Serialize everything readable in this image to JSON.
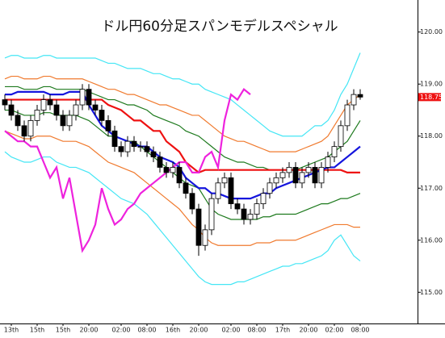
{
  "chart_data": {
    "type": "candlestick",
    "title": "ドル円60分足スパンモデルスペシャル",
    "categories": [
      null,
      "13th",
      null,
      null,
      null,
      "15th",
      null,
      null,
      null,
      "15th",
      null,
      null,
      null,
      "20:00",
      null,
      null,
      null,
      null,
      "02:00",
      null,
      null,
      null,
      "08:00",
      null,
      null,
      null,
      "16th",
      null,
      null,
      null,
      "20:00",
      null,
      null,
      null,
      null,
      "02:00",
      null,
      null,
      null,
      "08:00",
      null,
      null,
      null,
      "17th",
      null,
      null,
      null,
      "20:00",
      null,
      null,
      null,
      "02:00",
      null,
      null,
      null,
      "08:00"
    ],
    "candles": {
      "open": [
        118.7,
        118.6,
        118.4,
        118.2,
        118.0,
        118.3,
        118.5,
        118.7,
        118.6,
        118.4,
        118.2,
        118.4,
        118.6,
        118.9,
        118.6,
        118.5,
        118.3,
        118.1,
        117.8,
        117.7,
        117.9,
        117.8,
        117.8,
        117.7,
        117.6,
        117.4,
        117.3,
        117.4,
        117.1,
        116.9,
        116.6,
        115.9,
        116.2,
        116.8,
        117.1,
        117.2,
        116.7,
        116.6,
        116.4,
        116.5,
        116.7,
        116.9,
        117.1,
        117.2,
        117.3,
        117.4,
        117.1,
        117.3,
        117.4,
        117.1,
        117.4,
        117.6,
        117.8,
        118.2,
        118.6,
        118.8
      ],
      "high": [
        118.8,
        118.7,
        118.5,
        118.3,
        118.4,
        118.6,
        118.8,
        118.8,
        118.7,
        118.5,
        118.5,
        118.7,
        119.0,
        119.0,
        118.7,
        118.6,
        118.4,
        118.2,
        117.9,
        118.0,
        118.0,
        117.9,
        117.9,
        117.8,
        117.7,
        117.5,
        117.5,
        117.5,
        117.2,
        117.0,
        116.7,
        116.3,
        116.9,
        117.2,
        117.3,
        117.3,
        116.8,
        116.7,
        116.6,
        116.8,
        117.0,
        117.2,
        117.3,
        117.4,
        117.5,
        117.5,
        117.4,
        117.5,
        117.5,
        117.5,
        117.7,
        117.9,
        118.3,
        118.7,
        118.9,
        118.9
      ],
      "low": [
        118.5,
        118.3,
        118.1,
        117.9,
        117.9,
        118.2,
        118.4,
        118.5,
        118.3,
        118.1,
        118.1,
        118.3,
        118.5,
        118.5,
        118.4,
        118.2,
        118.0,
        117.7,
        117.6,
        117.6,
        117.7,
        117.7,
        117.6,
        117.5,
        117.3,
        117.2,
        117.2,
        117.0,
        116.8,
        116.5,
        115.7,
        115.8,
        116.1,
        116.7,
        117.0,
        116.6,
        116.5,
        116.3,
        116.3,
        116.4,
        116.6,
        116.8,
        117.0,
        117.1,
        117.2,
        117.0,
        117.0,
        117.2,
        117.0,
        117.0,
        117.3,
        117.5,
        117.7,
        118.1,
        118.5,
        118.7
      ],
      "close": [
        118.6,
        118.4,
        118.2,
        118.0,
        118.3,
        118.5,
        118.7,
        118.6,
        118.4,
        118.2,
        118.4,
        118.6,
        118.9,
        118.6,
        118.5,
        118.3,
        118.1,
        117.8,
        117.7,
        117.9,
        117.8,
        117.8,
        117.7,
        117.6,
        117.4,
        117.3,
        117.4,
        117.1,
        116.9,
        116.6,
        115.9,
        116.2,
        116.8,
        117.1,
        117.2,
        116.7,
        116.6,
        116.4,
        116.5,
        116.7,
        116.9,
        117.1,
        117.2,
        117.3,
        117.4,
        117.1,
        117.3,
        117.4,
        117.1,
        117.4,
        117.6,
        117.8,
        118.2,
        118.6,
        118.8,
        118.75
      ],
      "up_color": "#ffffff",
      "down_color": "#000000"
    },
    "series": [
      {
        "color": "#44e6f5",
        "values": [
          119.5,
          119.55,
          119.55,
          119.5,
          119.5,
          119.5,
          119.55,
          119.55,
          119.5,
          119.5,
          119.5,
          119.5,
          119.5,
          119.5,
          119.5,
          119.45,
          119.4,
          119.4,
          119.35,
          119.3,
          119.3,
          119.3,
          119.25,
          119.2,
          119.2,
          119.15,
          119.1,
          119.1,
          119.05,
          119.0,
          119.0,
          118.9,
          118.85,
          118.8,
          118.75,
          118.7,
          118.6,
          118.5,
          118.4,
          118.3,
          118.2,
          118.1,
          118.05,
          118.0,
          118.0,
          118.0,
          118.0,
          118.1,
          118.2,
          118.2,
          118.3,
          118.5,
          118.8,
          119.0,
          119.3,
          119.6
        ]
      },
      {
        "color": "#f07a2e",
        "values": [
          119.1,
          119.15,
          119.15,
          119.1,
          119.1,
          119.1,
          119.15,
          119.15,
          119.1,
          119.1,
          119.1,
          119.1,
          119.1,
          119.05,
          119.0,
          118.95,
          118.9,
          118.9,
          118.85,
          118.8,
          118.8,
          118.75,
          118.7,
          118.65,
          118.6,
          118.6,
          118.55,
          118.5,
          118.45,
          118.4,
          118.4,
          118.3,
          118.2,
          118.1,
          118.0,
          117.95,
          117.9,
          117.9,
          117.85,
          117.8,
          117.75,
          117.7,
          117.7,
          117.7,
          117.7,
          117.7,
          117.75,
          117.8,
          117.85,
          117.9,
          118.0,
          118.2,
          118.4,
          118.6,
          118.7,
          118.8
        ]
      },
      {
        "color": "#1e7a1e",
        "values": [
          118.95,
          118.95,
          118.95,
          118.9,
          118.9,
          118.9,
          118.95,
          118.95,
          118.9,
          118.9,
          118.9,
          118.9,
          118.9,
          118.85,
          118.8,
          118.75,
          118.7,
          118.7,
          118.65,
          118.6,
          118.6,
          118.55,
          118.5,
          118.4,
          118.35,
          118.3,
          118.25,
          118.2,
          118.1,
          118.05,
          118.0,
          117.9,
          117.8,
          117.7,
          117.6,
          117.55,
          117.5,
          117.5,
          117.45,
          117.4,
          117.4,
          117.35,
          117.35,
          117.35,
          117.35,
          117.35,
          117.4,
          117.45,
          117.5,
          117.55,
          117.6,
          117.7,
          117.8,
          117.9,
          118.1,
          118.3
        ]
      },
      {
        "color": "#1e7a1e",
        "values": [
          118.5,
          118.5,
          118.45,
          118.4,
          118.4,
          118.4,
          118.45,
          118.45,
          118.4,
          118.4,
          118.4,
          118.4,
          118.35,
          118.3,
          118.2,
          118.1,
          118.0,
          118.0,
          117.95,
          117.9,
          117.9,
          117.8,
          117.7,
          117.6,
          117.5,
          117.4,
          117.3,
          117.2,
          117.1,
          117.05,
          117.0,
          116.8,
          116.6,
          116.5,
          116.45,
          116.4,
          116.4,
          116.4,
          116.4,
          116.4,
          116.45,
          116.45,
          116.5,
          116.5,
          116.5,
          116.5,
          116.55,
          116.6,
          116.65,
          116.7,
          116.7,
          116.75,
          116.8,
          116.8,
          116.85,
          116.9
        ]
      },
      {
        "color": "#f07a2e",
        "values": [
          118.1,
          118.05,
          118.0,
          117.95,
          117.95,
          118.0,
          118.0,
          118.0,
          117.95,
          117.9,
          117.9,
          117.9,
          117.85,
          117.8,
          117.7,
          117.6,
          117.5,
          117.45,
          117.4,
          117.35,
          117.3,
          117.2,
          117.1,
          117.0,
          116.9,
          116.8,
          116.7,
          116.6,
          116.45,
          116.3,
          116.2,
          116.05,
          115.95,
          115.9,
          115.9,
          115.9,
          115.9,
          115.9,
          115.9,
          115.95,
          115.95,
          115.95,
          116.0,
          116.0,
          116.0,
          116.0,
          116.05,
          116.1,
          116.15,
          116.2,
          116.25,
          116.3,
          116.3,
          116.3,
          116.25,
          116.25
        ]
      },
      {
        "color": "#44e6f5",
        "values": [
          117.7,
          117.6,
          117.55,
          117.5,
          117.5,
          117.55,
          117.6,
          117.6,
          117.5,
          117.45,
          117.4,
          117.4,
          117.35,
          117.3,
          117.2,
          117.1,
          117.0,
          116.9,
          116.8,
          116.75,
          116.7,
          116.6,
          116.5,
          116.35,
          116.2,
          116.05,
          115.9,
          115.75,
          115.6,
          115.45,
          115.3,
          115.2,
          115.15,
          115.15,
          115.15,
          115.15,
          115.2,
          115.2,
          115.25,
          115.3,
          115.35,
          115.4,
          115.45,
          115.5,
          115.5,
          115.55,
          115.55,
          115.6,
          115.65,
          115.7,
          115.8,
          116.0,
          116.1,
          115.9,
          115.7,
          115.6
        ]
      },
      {
        "color": "#ee1111",
        "values": [
          118.7,
          118.7,
          118.7,
          118.7,
          118.7,
          118.7,
          118.7,
          118.7,
          118.7,
          118.7,
          118.7,
          118.7,
          118.7,
          118.7,
          118.7,
          118.7,
          118.6,
          118.55,
          118.5,
          118.4,
          118.3,
          118.3,
          118.2,
          118.1,
          118.1,
          117.9,
          117.8,
          117.7,
          117.5,
          117.4,
          117.3,
          117.35,
          117.35,
          117.35,
          117.35,
          117.35,
          117.35,
          117.35,
          117.35,
          117.35,
          117.35,
          117.35,
          117.35,
          117.35,
          117.35,
          117.35,
          117.35,
          117.35,
          117.35,
          117.35,
          117.35,
          117.35,
          117.35,
          117.3,
          117.3,
          117.3
        ]
      },
      {
        "color": "#1515dd",
        "values": [
          118.8,
          118.8,
          118.85,
          118.85,
          118.85,
          118.85,
          118.85,
          118.8,
          118.8,
          118.8,
          118.85,
          118.85,
          118.85,
          118.6,
          118.4,
          118.2,
          118.1,
          118.0,
          117.95,
          117.9,
          117.85,
          117.8,
          117.8,
          117.7,
          117.6,
          117.55,
          117.5,
          117.4,
          117.2,
          117.1,
          117.0,
          117.0,
          116.9,
          116.9,
          116.85,
          116.8,
          116.8,
          116.8,
          116.8,
          116.85,
          116.9,
          116.9,
          117.0,
          117.05,
          117.1,
          117.15,
          117.2,
          117.25,
          117.3,
          117.35,
          117.4,
          117.4,
          117.5,
          117.6,
          117.7,
          117.8
        ]
      },
      {
        "color": "#ee22dd",
        "values": [
          118.1,
          118.0,
          117.9,
          117.9,
          117.8,
          117.8,
          117.5,
          117.2,
          117.4,
          116.8,
          117.2,
          116.5,
          115.8,
          116.0,
          116.3,
          117.0,
          116.6,
          116.3,
          116.4,
          116.6,
          116.7,
          116.9,
          117.0,
          117.1,
          117.2,
          117.3,
          117.4,
          117.5,
          117.5,
          117.3,
          117.3,
          117.6,
          117.7,
          117.4,
          118.3,
          118.8,
          118.7,
          118.9,
          118.8,
          null,
          null,
          null,
          null,
          null,
          null,
          null,
          null,
          null,
          null,
          null,
          null,
          null,
          null,
          null,
          null,
          null
        ]
      }
    ],
    "last_price": 118.75,
    "ylim": [
      114.4,
      120.6
    ],
    "yticks": [
      {
        "value": 115,
        "label": "115.00"
      },
      {
        "value": 116,
        "label": "116.00"
      },
      {
        "value": 117,
        "label": "117.00"
      },
      {
        "value": 118,
        "label": "118.00"
      },
      {
        "value": 119,
        "label": "119.00"
      },
      {
        "value": 120,
        "label": "120.00"
      }
    ]
  }
}
